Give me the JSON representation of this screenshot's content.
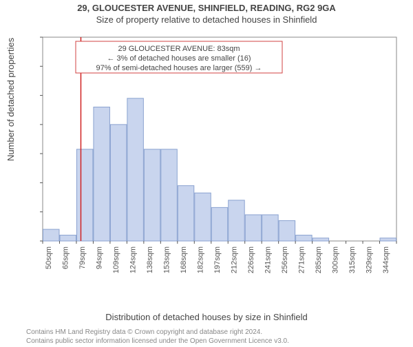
{
  "titles": {
    "line1": "29, GLOUCESTER AVENUE, SHINFIELD, READING, RG2 9GA",
    "line2": "Size of property relative to detached houses in Shinfield"
  },
  "axes": {
    "ylabel": "Number of detached properties",
    "xlabel": "Distribution of detached houses by size in Shinfield",
    "ylim": [
      0,
      140
    ],
    "ytick_step": 20,
    "yticks": [
      0,
      20,
      40,
      60,
      80,
      100,
      120,
      140
    ]
  },
  "legend": {
    "line1": "29 GLOUCESTER AVENUE: 83sqm",
    "line2": "← 3% of detached houses are smaller (16)",
    "line3": "97% of semi-detached houses are larger (559) →",
    "border_color": "#d04040",
    "text_color": "#444444"
  },
  "marker": {
    "value_sqm": 83,
    "color": "#d02020"
  },
  "histogram": {
    "type": "histogram",
    "bar_fill": "#c9d5ee",
    "bar_stroke": "#8aa2d0",
    "background": "#ffffff",
    "border_color": "#888888",
    "bins": [
      {
        "label": "50sqm",
        "x": 50,
        "value": 8
      },
      {
        "label": "65sqm",
        "x": 65,
        "value": 4
      },
      {
        "label": "79sqm",
        "x": 79,
        "value": 63
      },
      {
        "label": "94sqm",
        "x": 94,
        "value": 92
      },
      {
        "label": "109sqm",
        "x": 109,
        "value": 80
      },
      {
        "label": "124sqm",
        "x": 124,
        "value": 98
      },
      {
        "label": "138sqm",
        "x": 138,
        "value": 63
      },
      {
        "label": "153sqm",
        "x": 153,
        "value": 63
      },
      {
        "label": "168sqm",
        "x": 168,
        "value": 38
      },
      {
        "label": "182sqm",
        "x": 182,
        "value": 33
      },
      {
        "label": "197sqm",
        "x": 197,
        "value": 23
      },
      {
        "label": "212sqm",
        "x": 212,
        "value": 28
      },
      {
        "label": "226sqm",
        "x": 226,
        "value": 18
      },
      {
        "label": "241sqm",
        "x": 241,
        "value": 18
      },
      {
        "label": "256sqm",
        "x": 256,
        "value": 14
      },
      {
        "label": "271sqm",
        "x": 271,
        "value": 4
      },
      {
        "label": "285sqm",
        "x": 285,
        "value": 2
      },
      {
        "label": "300sqm",
        "x": 300,
        "value": 0
      },
      {
        "label": "315sqm",
        "x": 315,
        "value": 0
      },
      {
        "label": "329sqm",
        "x": 329,
        "value": 0
      },
      {
        "label": "344sqm",
        "x": 344,
        "value": 2
      }
    ]
  },
  "attribution": {
    "line1": "Contains HM Land Registry data © Crown copyright and database right 2024.",
    "line2": "Contains public sector information licensed under the Open Government Licence v3.0."
  }
}
